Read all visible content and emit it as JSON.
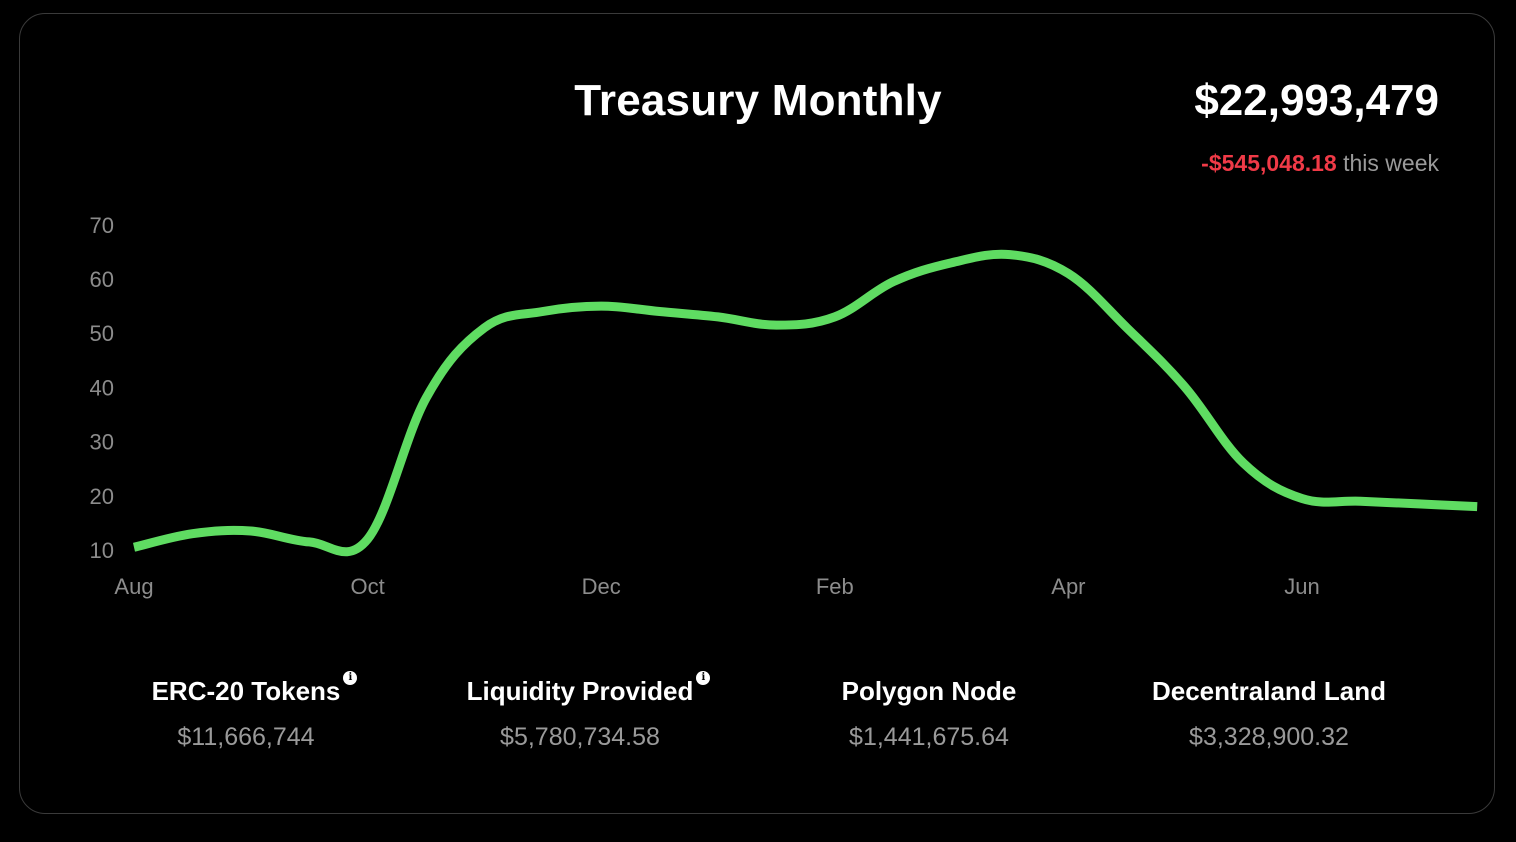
{
  "header": {
    "title": "Treasury Monthly",
    "total": "$22,993,479",
    "change_value": "-$545,048.18",
    "change_suffix": "this week"
  },
  "colors": {
    "background": "#000000",
    "line": "#5fdc62",
    "negative": "#f03a47",
    "muted_text": "#9a9a9a"
  },
  "chart_data": {
    "type": "line",
    "title": "Treasury Monthly",
    "xlabel": "",
    "ylabel": "",
    "ylim": [
      10,
      70
    ],
    "yticks": [
      10,
      20,
      30,
      40,
      50,
      60,
      70
    ],
    "xticks": [
      "Aug",
      "Oct",
      "Dec",
      "Feb",
      "Apr",
      "Jun"
    ],
    "grid": false,
    "legend": "none",
    "series": [
      {
        "x": [
          0,
          0.5,
          1,
          1.5,
          2,
          2.5,
          3,
          3.5,
          4,
          4.5,
          5,
          5.5,
          6,
          6.5,
          7,
          7.5,
          8,
          8.5,
          9,
          9.5,
          10,
          10.5,
          11,
          11.5
        ],
        "values": [
          10.5,
          13,
          13.5,
          11.5,
          12,
          38,
          51,
          54,
          55,
          54,
          53,
          51.5,
          53,
          59.5,
          63,
          64.5,
          61,
          51,
          40,
          26,
          19.5,
          19,
          18.5,
          18
        ]
      }
    ]
  },
  "assets": [
    {
      "name": "ERC-20 Tokens",
      "value": "$11,666,744",
      "info": true
    },
    {
      "name": "Liquidity Provided",
      "value": "$5,780,734.58",
      "info": true
    },
    {
      "name": "Polygon Node",
      "value": "$1,441,675.64",
      "info": false
    },
    {
      "name": "Decentraland Land",
      "value": "$3,328,900.32",
      "info": false
    }
  ]
}
